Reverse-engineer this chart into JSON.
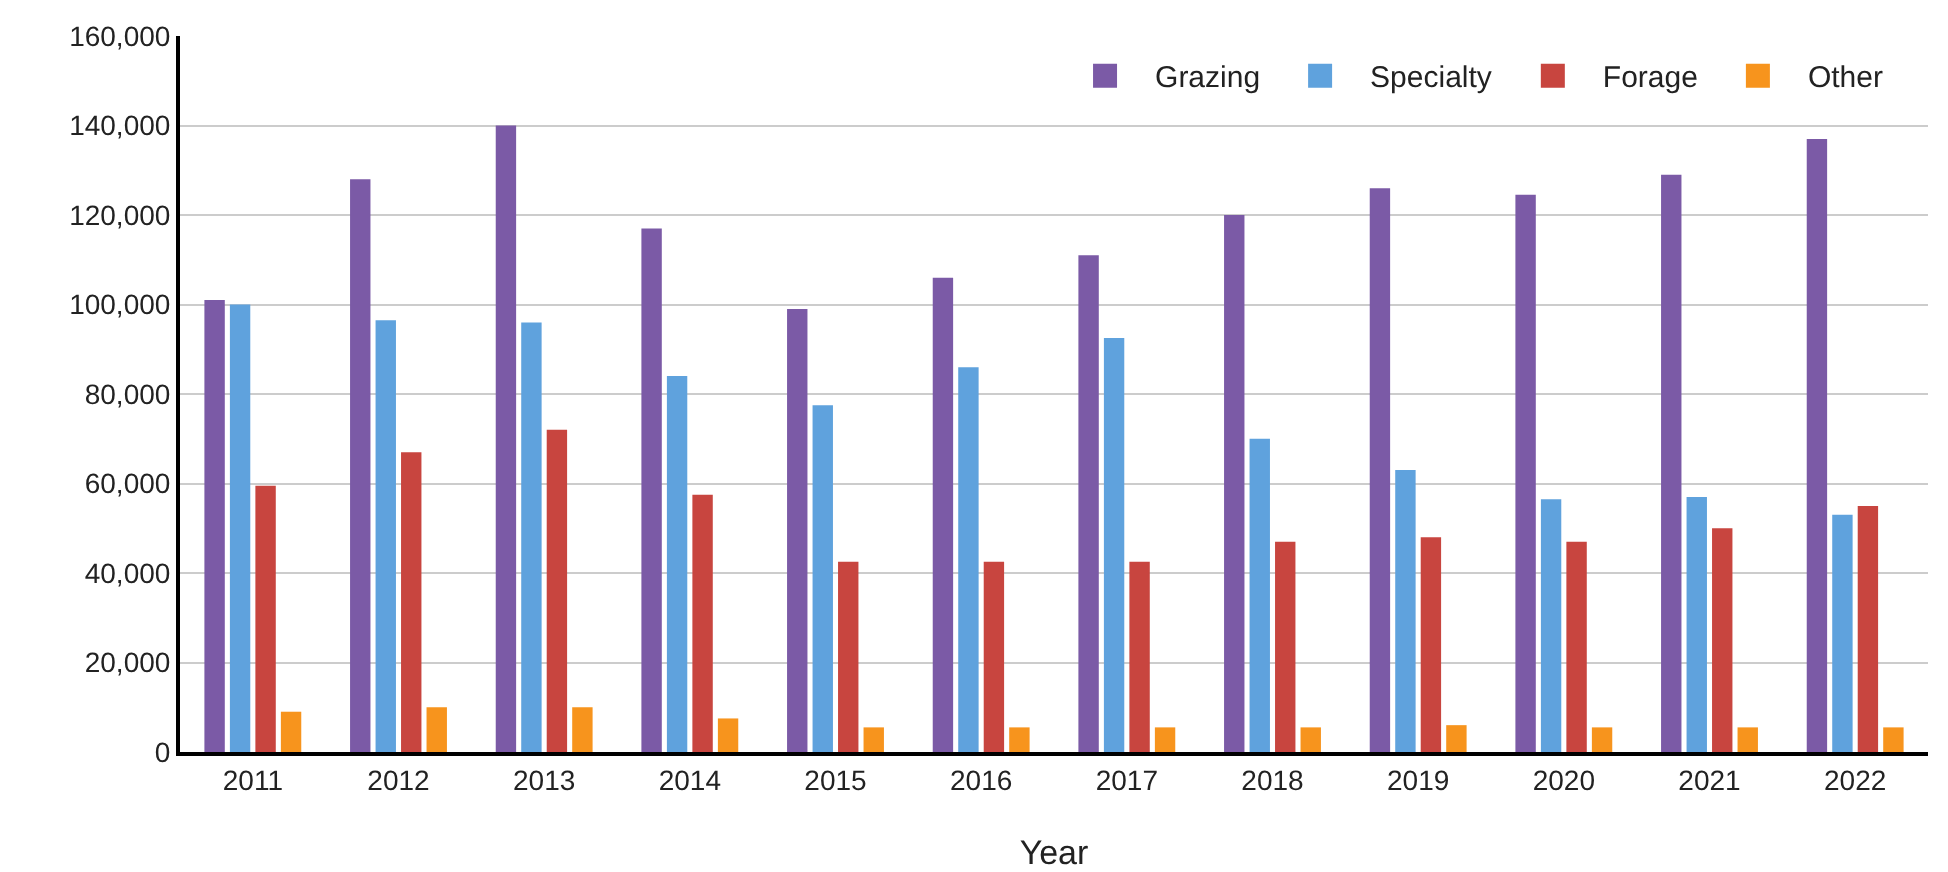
{
  "chart_data": {
    "type": "bar",
    "xlabel": "Year",
    "categories": [
      "2011",
      "2012",
      "2013",
      "2014",
      "2015",
      "2016",
      "2017",
      "2018",
      "2019",
      "2020",
      "2021",
      "2022"
    ],
    "series": [
      {
        "name": "Grazing",
        "color": "#7b5aa6",
        "values": [
          101000,
          128000,
          140000,
          117000,
          99000,
          106000,
          111000,
          120000,
          126000,
          124500,
          129000,
          137000
        ]
      },
      {
        "name": "Specialty",
        "color": "#5fa2dd",
        "values": [
          100000,
          96500,
          96000,
          84000,
          77500,
          86000,
          92500,
          70000,
          63000,
          56500,
          57000,
          53000
        ]
      },
      {
        "name": "Forage",
        "color": "#c8453f",
        "values": [
          59500,
          67000,
          72000,
          57500,
          42500,
          42500,
          42500,
          47000,
          48000,
          47000,
          50000,
          55000
        ]
      },
      {
        "name": "Other",
        "color": "#f7941d",
        "values": [
          9000,
          10000,
          10000,
          7500,
          5500,
          5500,
          5500,
          5500,
          6000,
          5500,
          5500,
          5500
        ]
      }
    ],
    "ylim": [
      0,
      160000
    ],
    "yticks": [
      0,
      {
        "value": 20000,
        "label": "20,000"
      },
      {
        "value": 40000,
        "label": "40,000"
      },
      {
        "value": 60000,
        "label": "60,000"
      },
      {
        "value": 80000,
        "label": "80,000"
      },
      {
        "value": 100000,
        "label": "100,000"
      },
      {
        "value": 120000,
        "label": "120,000"
      },
      {
        "value": 140000,
        "label": "140,000"
      },
      {
        "value": 160000,
        "label": "160,000"
      }
    ],
    "grid": "y",
    "legend": "top right"
  }
}
